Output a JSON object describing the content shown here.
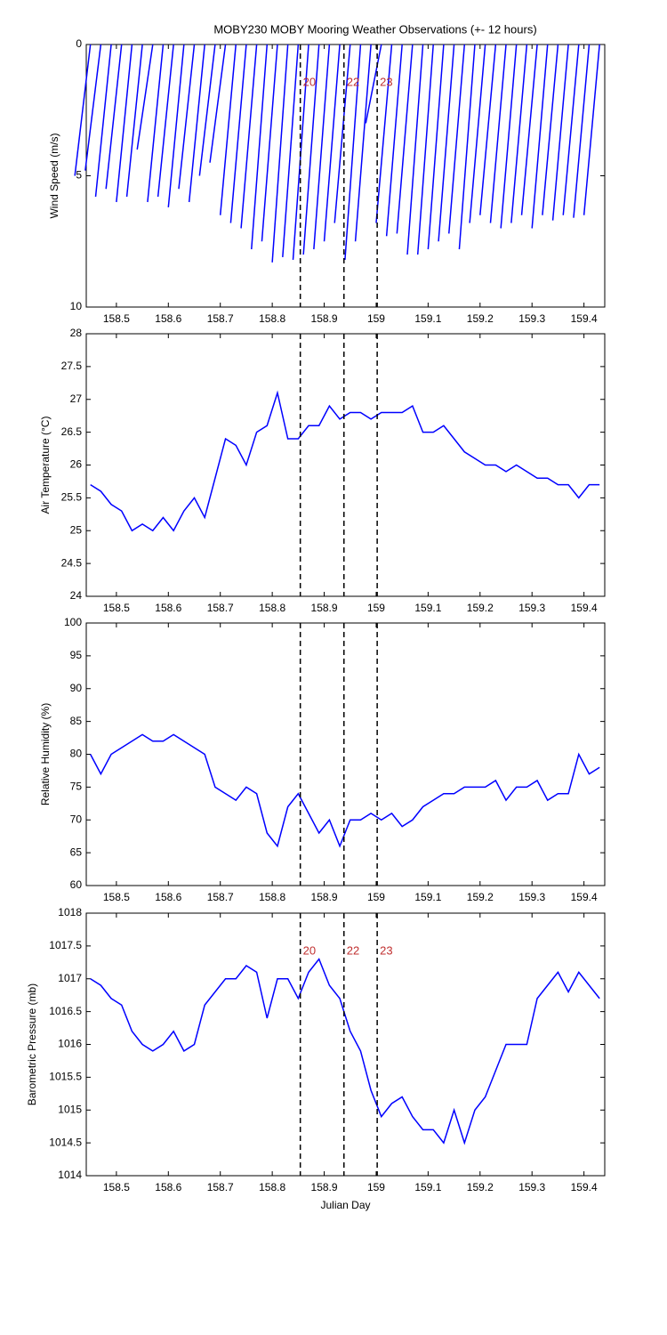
{
  "chart_data": [
    {
      "type": "stick",
      "title": "MOBY230 MOBY Mooring Weather Observations (+- 12 hours)",
      "ylabel": "Wind Speed (m/s)",
      "y_reversed": true,
      "color": "#0000ff",
      "x": [
        158.45,
        158.47,
        158.49,
        158.51,
        158.53,
        158.55,
        158.57,
        158.59,
        158.61,
        158.63,
        158.65,
        158.67,
        158.69,
        158.71,
        158.73,
        158.75,
        158.77,
        158.79,
        158.81,
        158.83,
        158.85,
        158.87,
        158.89,
        158.91,
        158.93,
        158.95,
        158.97,
        158.99,
        159.01,
        159.03,
        159.05,
        159.07,
        159.09,
        159.11,
        159.13,
        159.15,
        159.17,
        159.19,
        159.21,
        159.23,
        159.25,
        159.27,
        159.29,
        159.31,
        159.33,
        159.35,
        159.37,
        159.39,
        159.41,
        159.43
      ],
      "x_end": [
        158.42,
        158.44,
        158.46,
        158.48,
        158.5,
        158.52,
        158.54,
        158.56,
        158.58,
        158.6,
        158.62,
        158.64,
        158.66,
        158.68,
        158.7,
        158.72,
        158.74,
        158.76,
        158.78,
        158.8,
        158.82,
        158.84,
        158.86,
        158.88,
        158.9,
        158.92,
        158.94,
        158.96,
        158.98,
        159.0,
        159.02,
        159.04,
        159.06,
        159.08,
        159.1,
        159.12,
        159.14,
        159.16,
        159.18,
        159.2,
        159.22,
        159.24,
        159.26,
        159.28,
        159.3,
        159.32,
        159.34,
        159.36,
        159.38,
        159.4
      ],
      "values": [
        5,
        4.8,
        5.8,
        5.5,
        6,
        5.8,
        4,
        6,
        5.8,
        6.2,
        5.5,
        6,
        5,
        4.5,
        6.5,
        6.8,
        7,
        7.8,
        7.5,
        8.3,
        8.1,
        8.2,
        8,
        7.8,
        7.5,
        6.8,
        8.2,
        7.5,
        3,
        6.8,
        7.3,
        7.2,
        8,
        8,
        7.8,
        7.5,
        7.2,
        7.8,
        6.8,
        6.5,
        6.8,
        7,
        6.8,
        6.5,
        7,
        6.5,
        6.7,
        6.5,
        6.6,
        6.5
      ],
      "xlim": [
        158.442,
        159.44
      ],
      "ylim": [
        0,
        10
      ],
      "yticks": [
        0,
        5,
        10
      ],
      "xticks": [
        158.5,
        158.6,
        158.7,
        158.8,
        158.9,
        159,
        159.1,
        159.2,
        159.3,
        159.4
      ],
      "vlines": [
        158.854,
        158.938,
        159.002
      ],
      "vline_labels": [
        "20",
        "22",
        "23"
      ]
    },
    {
      "type": "line",
      "ylabel": "Air Temperature (°C)",
      "color": "#0000ff",
      "x": [
        158.45,
        158.47,
        158.49,
        158.51,
        158.53,
        158.55,
        158.57,
        158.59,
        158.61,
        158.63,
        158.65,
        158.67,
        158.69,
        158.71,
        158.73,
        158.75,
        158.77,
        158.79,
        158.81,
        158.83,
        158.85,
        158.87,
        158.89,
        158.91,
        158.93,
        158.95,
        158.97,
        158.99,
        159.01,
        159.03,
        159.05,
        159.07,
        159.09,
        159.11,
        159.13,
        159.15,
        159.17,
        159.19,
        159.21,
        159.23,
        159.25,
        159.27,
        159.29,
        159.31,
        159.33,
        159.35,
        159.37,
        159.39,
        159.41,
        159.43
      ],
      "values": [
        25.7,
        25.6,
        25.4,
        25.3,
        25.0,
        25.1,
        25.0,
        25.2,
        25.0,
        25.3,
        25.5,
        25.2,
        25.8,
        26.4,
        26.3,
        26.0,
        26.5,
        26.6,
        27.1,
        26.4,
        26.4,
        26.6,
        26.6,
        26.9,
        26.7,
        26.8,
        26.8,
        26.7,
        26.8,
        26.8,
        26.8,
        26.9,
        26.5,
        26.5,
        26.6,
        26.4,
        26.2,
        26.1,
        26.0,
        26.0,
        25.9,
        26.0,
        25.9,
        25.8,
        25.8,
        25.7,
        25.7,
        25.5,
        25.7,
        25.7
      ],
      "xlim": [
        158.442,
        159.44
      ],
      "ylim": [
        24,
        28
      ],
      "yticks": [
        24,
        24.5,
        25,
        25.5,
        26,
        26.5,
        27,
        27.5,
        28
      ],
      "xticks": [
        158.5,
        158.6,
        158.7,
        158.8,
        158.9,
        159,
        159.1,
        159.2,
        159.3,
        159.4
      ],
      "vlines": [
        158.854,
        158.938,
        159.002
      ]
    },
    {
      "type": "line",
      "ylabel": "Relative Humidity (%)",
      "color": "#0000ff",
      "x": [
        158.45,
        158.47,
        158.49,
        158.51,
        158.53,
        158.55,
        158.57,
        158.59,
        158.61,
        158.63,
        158.65,
        158.67,
        158.69,
        158.71,
        158.73,
        158.75,
        158.77,
        158.79,
        158.81,
        158.83,
        158.85,
        158.87,
        158.89,
        158.91,
        158.93,
        158.95,
        158.97,
        158.99,
        159.01,
        159.03,
        159.05,
        159.07,
        159.09,
        159.11,
        159.13,
        159.15,
        159.17,
        159.19,
        159.21,
        159.23,
        159.25,
        159.27,
        159.29,
        159.31,
        159.33,
        159.35,
        159.37,
        159.39,
        159.41,
        159.43
      ],
      "values": [
        80,
        77,
        80,
        81,
        82,
        83,
        82,
        82,
        83,
        82,
        81,
        80,
        75,
        74,
        73,
        75,
        74,
        68,
        66,
        72,
        74,
        71,
        68,
        70,
        66,
        70,
        70,
        71,
        70,
        71,
        69,
        70,
        72,
        73,
        74,
        74,
        75,
        75,
        75,
        76,
        73,
        75,
        75,
        76,
        73,
        74,
        74,
        80,
        77,
        78
      ],
      "xlim": [
        158.442,
        159.44
      ],
      "ylim": [
        60,
        100
      ],
      "yticks": [
        60,
        65,
        70,
        75,
        80,
        85,
        90,
        95,
        100
      ],
      "xticks": [
        158.5,
        158.6,
        158.7,
        158.8,
        158.9,
        159,
        159.1,
        159.2,
        159.3,
        159.4
      ],
      "vlines": [
        158.854,
        158.938,
        159.002
      ]
    },
    {
      "type": "line",
      "ylabel": "Barometric Pressure (mb)",
      "xlabel": "Julian Day",
      "color": "#0000ff",
      "x": [
        158.45,
        158.47,
        158.49,
        158.51,
        158.53,
        158.55,
        158.57,
        158.59,
        158.61,
        158.63,
        158.65,
        158.67,
        158.69,
        158.71,
        158.73,
        158.75,
        158.77,
        158.79,
        158.81,
        158.83,
        158.85,
        158.87,
        158.89,
        158.91,
        158.93,
        158.95,
        158.97,
        158.99,
        159.01,
        159.03,
        159.05,
        159.07,
        159.09,
        159.11,
        159.13,
        159.15,
        159.17,
        159.19,
        159.21,
        159.23,
        159.25,
        159.27,
        159.29,
        159.31,
        159.33,
        159.35,
        159.37,
        159.39,
        159.41,
        159.43
      ],
      "values": [
        1017.0,
        1016.9,
        1016.7,
        1016.6,
        1016.2,
        1016.0,
        1015.9,
        1016.0,
        1016.2,
        1015.9,
        1016.0,
        1016.6,
        1016.8,
        1017.0,
        1017.0,
        1017.2,
        1017.1,
        1016.4,
        1017.0,
        1017.0,
        1016.7,
        1017.1,
        1017.3,
        1016.9,
        1016.7,
        1016.2,
        1015.9,
        1015.3,
        1014.9,
        1015.1,
        1015.2,
        1014.9,
        1014.7,
        1014.7,
        1014.5,
        1015.0,
        1014.5,
        1015.0,
        1015.2,
        1015.6,
        1016.0,
        1016.0,
        1016.0,
        1016.7,
        1016.9,
        1017.1,
        1016.8,
        1017.1,
        1016.9,
        1016.7
      ],
      "xlim": [
        158.442,
        159.44
      ],
      "ylim": [
        1014,
        1018
      ],
      "yticks": [
        1014,
        1014.5,
        1015,
        1015.5,
        1016,
        1016.5,
        1017,
        1017.5,
        1018
      ],
      "xticks": [
        158.5,
        158.6,
        158.7,
        158.8,
        158.9,
        159,
        159.1,
        159.2,
        159.3,
        159.4
      ],
      "vlines": [
        158.854,
        158.938,
        159.002
      ],
      "vline_labels": [
        "20",
        "22",
        "23"
      ]
    }
  ]
}
